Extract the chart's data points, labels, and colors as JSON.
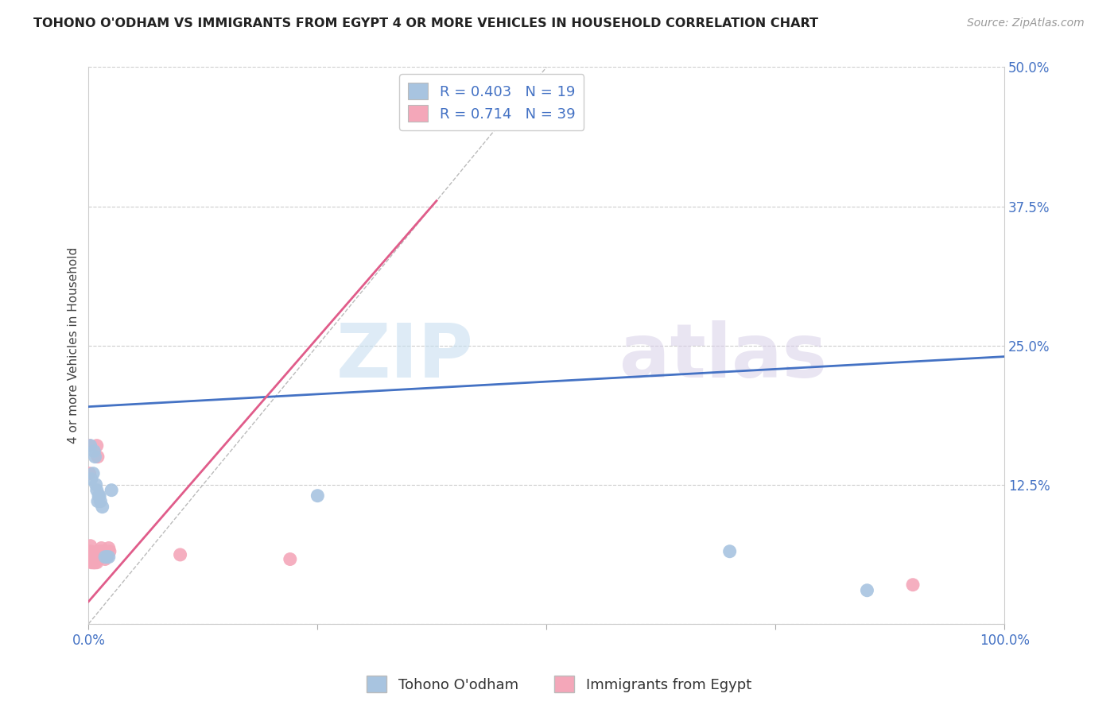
{
  "title": "TOHONO O'ODHAM VS IMMIGRANTS FROM EGYPT 4 OR MORE VEHICLES IN HOUSEHOLD CORRELATION CHART",
  "source": "Source: ZipAtlas.com",
  "ylabel": "4 or more Vehicles in Household",
  "xlabel_blue": "Tohono O'odham",
  "xlabel_pink": "Immigrants from Egypt",
  "blue_R": 0.403,
  "blue_N": 19,
  "pink_R": 0.714,
  "pink_N": 39,
  "xlim": [
    0.0,
    1.0
  ],
  "ylim": [
    0.0,
    0.5
  ],
  "yticks": [
    0.0,
    0.125,
    0.25,
    0.375,
    0.5
  ],
  "ytick_labels": [
    "",
    "12.5%",
    "25.0%",
    "37.5%",
    "50.0%"
  ],
  "xticks": [
    0.0,
    0.25,
    0.5,
    0.75,
    1.0
  ],
  "xtick_labels": [
    "0.0%",
    "",
    "",
    "",
    "100.0%"
  ],
  "blue_color": "#a8c4e0",
  "pink_color": "#f4a7b9",
  "blue_line_color": "#4472c4",
  "pink_line_color": "#e05c8a",
  "blue_points": [
    [
      0.002,
      0.16
    ],
    [
      0.003,
      0.13
    ],
    [
      0.005,
      0.135
    ],
    [
      0.006,
      0.155
    ],
    [
      0.007,
      0.15
    ],
    [
      0.008,
      0.125
    ],
    [
      0.009,
      0.12
    ],
    [
      0.01,
      0.11
    ],
    [
      0.011,
      0.115
    ],
    [
      0.012,
      0.115
    ],
    [
      0.013,
      0.11
    ],
    [
      0.015,
      0.105
    ],
    [
      0.018,
      0.06
    ],
    [
      0.02,
      0.06
    ],
    [
      0.022,
      0.06
    ],
    [
      0.025,
      0.12
    ],
    [
      0.25,
      0.115
    ],
    [
      0.7,
      0.065
    ],
    [
      0.85,
      0.03
    ]
  ],
  "pink_points": [
    [
      0.001,
      0.16
    ],
    [
      0.001,
      0.135
    ],
    [
      0.002,
      0.06
    ],
    [
      0.002,
      0.065
    ],
    [
      0.002,
      0.07
    ],
    [
      0.003,
      0.06
    ],
    [
      0.003,
      0.055
    ],
    [
      0.003,
      0.06
    ],
    [
      0.004,
      0.058
    ],
    [
      0.004,
      0.06
    ],
    [
      0.004,
      0.062
    ],
    [
      0.005,
      0.055
    ],
    [
      0.005,
      0.06
    ],
    [
      0.005,
      0.058
    ],
    [
      0.006,
      0.055
    ],
    [
      0.006,
      0.058
    ],
    [
      0.007,
      0.055
    ],
    [
      0.007,
      0.058
    ],
    [
      0.008,
      0.056
    ],
    [
      0.008,
      0.06
    ],
    [
      0.009,
      0.055
    ],
    [
      0.009,
      0.16
    ],
    [
      0.01,
      0.15
    ],
    [
      0.01,
      0.06
    ],
    [
      0.01,
      0.065
    ],
    [
      0.011,
      0.06
    ],
    [
      0.012,
      0.062
    ],
    [
      0.013,
      0.065
    ],
    [
      0.014,
      0.068
    ],
    [
      0.015,
      0.065
    ],
    [
      0.016,
      0.063
    ],
    [
      0.017,
      0.06
    ],
    [
      0.018,
      0.058
    ],
    [
      0.02,
      0.06
    ],
    [
      0.022,
      0.068
    ],
    [
      0.023,
      0.065
    ],
    [
      0.1,
      0.062
    ],
    [
      0.22,
      0.058
    ],
    [
      0.9,
      0.035
    ]
  ],
  "blue_line_x0": 0.0,
  "blue_line_y0": 0.195,
  "blue_line_x1": 1.0,
  "blue_line_y1": 0.24,
  "pink_line_x0": 0.0,
  "pink_line_y0": 0.02,
  "pink_line_x1": 0.38,
  "pink_line_y1": 0.38,
  "watermark_zip": "ZIP",
  "watermark_atlas": "atlas",
  "background_color": "#ffffff",
  "grid_color": "#cccccc"
}
